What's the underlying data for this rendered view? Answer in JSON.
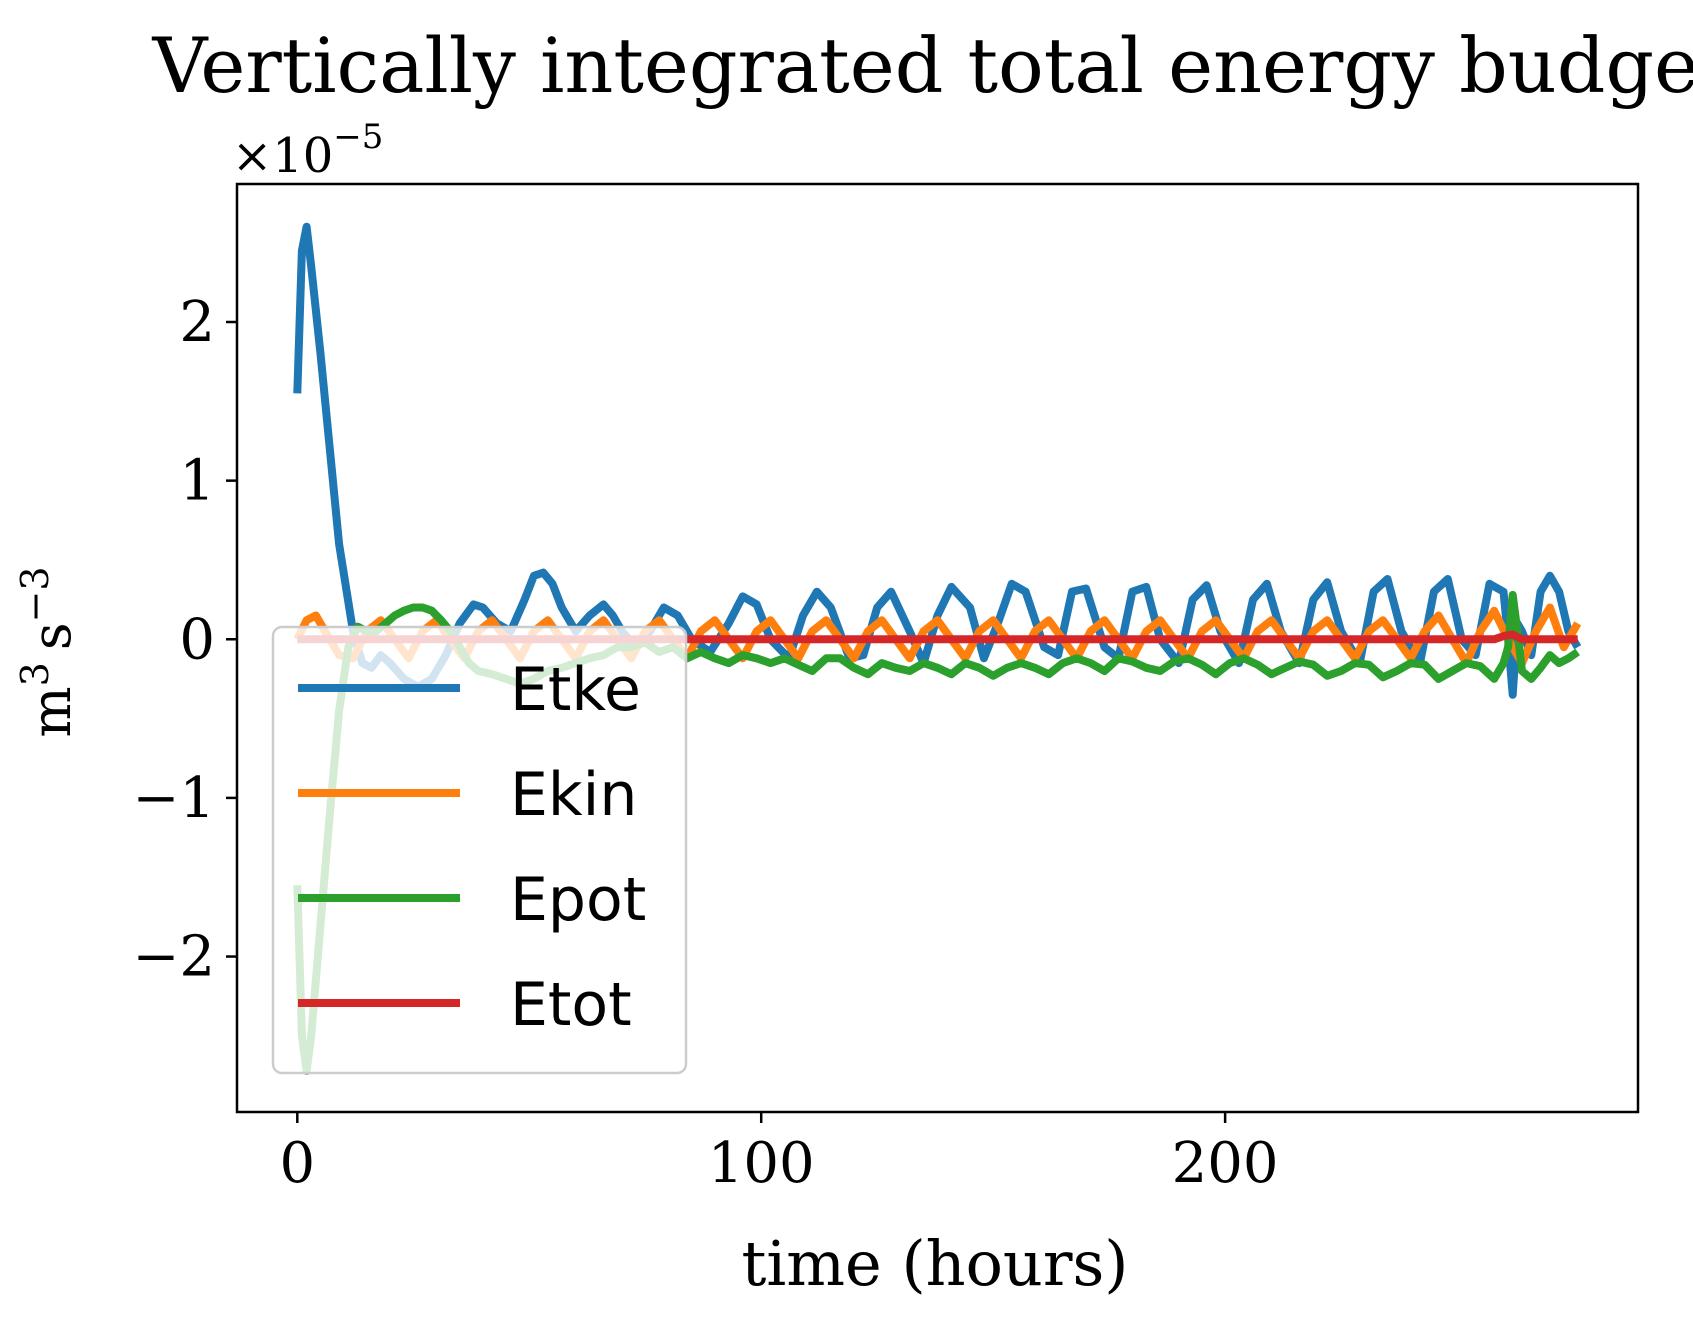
{
  "chart_data": {
    "type": "line",
    "title": "Vertically integrated total energy budget",
    "xlabel": "time (hours)",
    "ylabel_base": "m",
    "ylabel_exp1": "3",
    "ylabel_unit2": "s",
    "ylabel_exp2": "−3",
    "y_scale_base": "×10",
    "y_scale_exp": "−5",
    "xlim": [
      -13,
      289
    ],
    "ylim": [
      -2.98,
      2.87
    ],
    "x_ticks": [
      0,
      100,
      200
    ],
    "x_tick_labels": [
      "0",
      "100",
      "200"
    ],
    "y_ticks": [
      -2,
      -1,
      0,
      1,
      2
    ],
    "y_tick_labels": [
      "−2",
      "−1",
      "0",
      "1",
      "2"
    ],
    "grid": false,
    "legend_position": "lower-left",
    "series": [
      {
        "name": "Etke",
        "color": "#1f77b4",
        "x": [
          0,
          1,
          2,
          3,
          5,
          7,
          9,
          12,
          14,
          16,
          18,
          20,
          23,
          26,
          29,
          32,
          35,
          38,
          40,
          43,
          46,
          49,
          51,
          53,
          55,
          57,
          60,
          63,
          66,
          68,
          70,
          73,
          76,
          79,
          82,
          85,
          89,
          93,
          96,
          99,
          102,
          106,
          109,
          112,
          115,
          119,
          122,
          125,
          128,
          132,
          135,
          138,
          141,
          145,
          148,
          151,
          154,
          157,
          161,
          164,
          167,
          170,
          174,
          177,
          180,
          183,
          186,
          190,
          193,
          196,
          199,
          203,
          206,
          209,
          212,
          216,
          219,
          222,
          225,
          229,
          232,
          235,
          238,
          242,
          245,
          248,
          251,
          254,
          257,
          260,
          261,
          262,
          263,
          264,
          266,
          268,
          270,
          272,
          274,
          276
        ],
        "y": [
          1.55,
          2.45,
          2.6,
          2.35,
          1.8,
          1.2,
          0.6,
          0.05,
          -0.15,
          -0.18,
          -0.1,
          -0.15,
          -0.25,
          -0.3,
          -0.25,
          -0.1,
          0.1,
          0.22,
          0.2,
          0.1,
          0.05,
          0.25,
          0.4,
          0.42,
          0.35,
          0.2,
          0.05,
          0.15,
          0.22,
          0.15,
          0.05,
          -0.05,
          0.05,
          0.2,
          0.15,
          0.0,
          -0.08,
          0.1,
          0.27,
          0.22,
          0.0,
          -0.12,
          0.15,
          0.3,
          0.2,
          -0.12,
          -0.1,
          0.2,
          0.3,
          0.05,
          -0.15,
          0.15,
          0.33,
          0.2,
          -0.12,
          0.1,
          0.35,
          0.3,
          -0.05,
          -0.1,
          0.3,
          0.32,
          -0.05,
          -0.12,
          0.3,
          0.33,
          0.0,
          -0.15,
          0.25,
          0.34,
          0.05,
          -0.15,
          0.25,
          0.35,
          0.05,
          -0.15,
          0.25,
          0.36,
          0.05,
          -0.15,
          0.3,
          0.38,
          0.05,
          -0.15,
          0.3,
          0.38,
          0.0,
          -0.1,
          0.35,
          0.3,
          0.0,
          -0.35,
          0.1,
          0.05,
          -0.1,
          0.3,
          0.4,
          0.3,
          0.05,
          -0.05
        ]
      },
      {
        "name": "Ekin",
        "color": "#ff7f0e",
        "x": [
          0,
          2,
          4,
          6,
          9,
          12,
          15,
          18,
          21,
          24,
          27,
          30,
          33,
          36,
          39,
          42,
          45,
          48,
          51,
          54,
          57,
          60,
          63,
          66,
          69,
          72,
          75,
          78,
          81,
          84,
          87,
          90,
          93,
          96,
          99,
          102,
          105,
          108,
          111,
          114,
          117,
          120,
          123,
          126,
          129,
          132,
          135,
          138,
          141,
          144,
          147,
          150,
          153,
          156,
          159,
          162,
          165,
          168,
          171,
          174,
          177,
          180,
          183,
          186,
          189,
          192,
          195,
          198,
          201,
          204,
          207,
          210,
          213,
          216,
          219,
          222,
          225,
          228,
          231,
          234,
          237,
          240,
          243,
          246,
          249,
          252,
          255,
          258,
          261,
          264,
          267,
          270,
          273,
          276
        ],
        "y": [
          0.0,
          0.12,
          0.15,
          0.05,
          -0.1,
          -0.12,
          0.05,
          0.12,
          0.0,
          -0.12,
          0.05,
          0.12,
          0.0,
          -0.12,
          0.05,
          0.12,
          0.0,
          -0.12,
          0.05,
          0.12,
          0.0,
          -0.12,
          0.05,
          0.12,
          0.0,
          -0.12,
          0.05,
          0.12,
          0.0,
          -0.12,
          0.05,
          0.12,
          0.0,
          -0.12,
          0.05,
          0.12,
          0.0,
          -0.12,
          0.05,
          0.12,
          0.0,
          -0.12,
          0.05,
          0.12,
          0.0,
          -0.12,
          0.05,
          0.12,
          0.0,
          -0.12,
          0.05,
          0.12,
          0.0,
          -0.12,
          0.05,
          0.12,
          0.0,
          -0.12,
          0.05,
          0.12,
          0.0,
          -0.12,
          0.05,
          0.12,
          0.0,
          -0.12,
          0.05,
          0.12,
          0.0,
          -0.12,
          0.05,
          0.12,
          0.0,
          -0.12,
          0.05,
          0.12,
          0.0,
          -0.12,
          0.05,
          0.12,
          0.0,
          -0.12,
          0.05,
          0.15,
          0.0,
          -0.15,
          0.05,
          0.18,
          0.0,
          -0.15,
          0.05,
          0.2,
          -0.05,
          0.1
        ]
      },
      {
        "name": "Epot",
        "color": "#2ca02c",
        "x": [
          0,
          1,
          2,
          3,
          5,
          7,
          9,
          11,
          13,
          15,
          17,
          19,
          21,
          23,
          25,
          27,
          29,
          31,
          33,
          35,
          37,
          39,
          42,
          45,
          48,
          51,
          54,
          57,
          60,
          63,
          66,
          69,
          72,
          75,
          78,
          81,
          84,
          87,
          90,
          93,
          96,
          99,
          102,
          105,
          108,
          111,
          114,
          117,
          120,
          123,
          126,
          129,
          132,
          135,
          138,
          141,
          144,
          147,
          150,
          153,
          156,
          159,
          162,
          165,
          168,
          171,
          174,
          177,
          180,
          183,
          186,
          189,
          192,
          195,
          198,
          201,
          204,
          207,
          210,
          213,
          216,
          219,
          222,
          225,
          228,
          231,
          234,
          237,
          240,
          243,
          246,
          249,
          252,
          255,
          258,
          260,
          261,
          262,
          263,
          264,
          266,
          268,
          270,
          272,
          274,
          276
        ],
        "y": [
          -1.55,
          -2.5,
          -2.72,
          -2.5,
          -1.8,
          -1.1,
          -0.45,
          -0.05,
          0.08,
          0.05,
          0.05,
          0.1,
          0.15,
          0.18,
          0.2,
          0.2,
          0.18,
          0.12,
          0.05,
          -0.05,
          -0.15,
          -0.2,
          -0.22,
          -0.25,
          -0.28,
          -0.25,
          -0.2,
          -0.18,
          -0.15,
          -0.12,
          -0.1,
          -0.05,
          -0.05,
          -0.02,
          -0.08,
          -0.05,
          -0.12,
          -0.08,
          -0.12,
          -0.15,
          -0.1,
          -0.12,
          -0.15,
          -0.12,
          -0.16,
          -0.2,
          -0.12,
          -0.12,
          -0.18,
          -0.22,
          -0.15,
          -0.18,
          -0.2,
          -0.15,
          -0.18,
          -0.22,
          -0.15,
          -0.18,
          -0.23,
          -0.18,
          -0.15,
          -0.18,
          -0.22,
          -0.15,
          -0.12,
          -0.15,
          -0.2,
          -0.12,
          -0.14,
          -0.18,
          -0.2,
          -0.14,
          -0.12,
          -0.16,
          -0.22,
          -0.15,
          -0.12,
          -0.16,
          -0.22,
          -0.18,
          -0.14,
          -0.16,
          -0.23,
          -0.2,
          -0.15,
          -0.16,
          -0.24,
          -0.2,
          -0.15,
          -0.16,
          -0.25,
          -0.2,
          -0.15,
          -0.17,
          -0.25,
          -0.15,
          -0.05,
          0.28,
          0.05,
          -0.2,
          -0.25,
          -0.18,
          -0.1,
          -0.15,
          -0.12,
          -0.08
        ]
      },
      {
        "name": "Etot",
        "color": "#d62728",
        "x": [
          0,
          40,
          80,
          120,
          160,
          200,
          240,
          258,
          260,
          262,
          264,
          276
        ],
        "y": [
          0.0,
          0.0,
          0.0,
          0.0,
          0.0,
          0.0,
          0.0,
          0.0,
          0.02,
          0.03,
          0.0,
          0.0
        ]
      }
    ]
  }
}
